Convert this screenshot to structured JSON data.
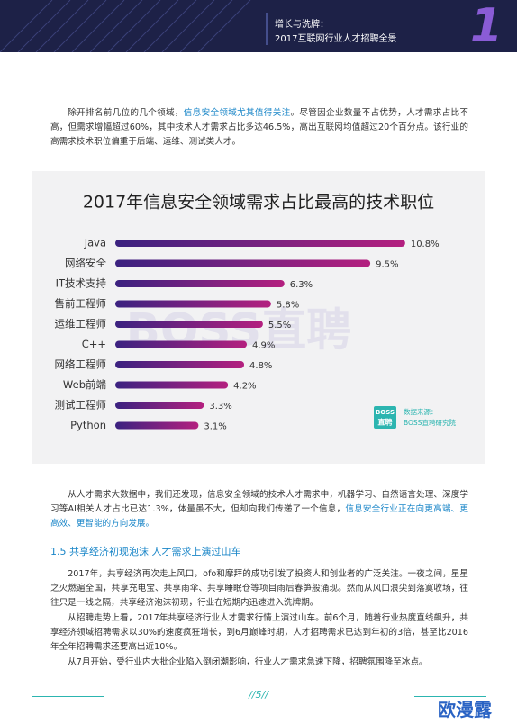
{
  "header": {
    "title_line1": "增长与洗牌：",
    "title_line2": "2017互联网行业人才招聘全景",
    "chapter": "1"
  },
  "paragraph1": [
    "除开排名前几位的几个领域，",
    "信息安全领域尤其值得关注",
    "。尽管因企业数量不占优势，人才需求占比不高，但需求增幅超过60%，其中技术人才需求占比多达46.5%，高出互联网均值超过20个百分点。该行业的高需求技术职位偏重于后端、运维、测试类人才。"
  ],
  "chart_data": {
    "type": "bar",
    "orientation": "horizontal",
    "title": "2017年信息安全领域需求占比最高的技术职位",
    "categories": [
      "Java",
      "网络安全",
      "IT技术支持",
      "售前工程师",
      "运维工程师",
      "C++",
      "网络工程师",
      "Web前端",
      "测试工程师",
      "Python"
    ],
    "values": [
      10.8,
      9.5,
      6.3,
      5.8,
      5.5,
      4.9,
      4.8,
      4.2,
      3.3,
      3.1
    ],
    "value_labels": [
      "10.8%",
      "9.5%",
      "6.3%",
      "5.8%",
      "5.5%",
      "4.9%",
      "4.8%",
      "4.2%",
      "3.3%",
      "3.1%"
    ],
    "gradient": [
      "#3b2280",
      "#b4207f"
    ],
    "watermark": "BOSS直聘",
    "logo_line1": "BOSS",
    "logo_line2": "直聘",
    "source_label": "数据来源：",
    "source": "BOSS直聘研究院"
  },
  "paragraph2": [
    "从人才需求大数据中，我们还发现，信息安全领域的技术人才需求中，机器学习、自然语言处理、深度学习等AI相关人才占比已达1.3%，体量虽不大，但却向我们传递了一个信息，",
    "信息安全行业正在向更高端、更高效、更智能的方向发展。"
  ],
  "section_heading": "1.5 共享经济初现泡沫 人才需求上演过山车",
  "paragraph3": "2017年，共享经济再次走上风口，ofo和摩拜的成功引发了投资人和创业者的广泛关注。一夜之间，星星之火燃遍全国，共享充电宝、共享雨伞、共享睡眠仓等项目雨后春笋般涌现。然而从风口浪尖到落寞收场，往往只是一线之隔，共享经济泡沫初现，行业在短期内迅速进入洗牌期。",
  "paragraph4": "从招聘走势上看，2017年共享经济行业人才需求行情上演过山车。前6个月，随着行业热度直线飙升，共享经济领域招聘需求以30%的速度疯狂增长，到6月巅峰时期，人才招聘需求已达到年初的3倍，甚至比2016年全年招聘需求还要高出近10%。",
  "paragraph5": "从7月开始，受行业内大批企业陷入倒闭潮影响，行业人才需求急速下降，招聘氛围降至冰点。",
  "footer": {
    "page": "//5//"
  },
  "watermark_text": "欧漫露"
}
